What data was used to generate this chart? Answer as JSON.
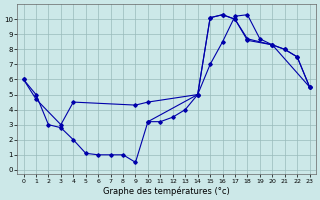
{
  "xlabel": "Graphe des températures (°c)",
  "bg_color": "#cce8e8",
  "line_color": "#0000aa",
  "grid_color": "#99bbbb",
  "xlim": [
    -0.5,
    23.5
  ],
  "ylim": [
    -0.3,
    11.0
  ],
  "xticks": [
    0,
    1,
    2,
    3,
    4,
    5,
    6,
    7,
    8,
    9,
    10,
    11,
    12,
    13,
    14,
    15,
    16,
    17,
    18,
    19,
    20,
    21,
    22,
    23
  ],
  "yticks": [
    0,
    1,
    2,
    3,
    4,
    5,
    6,
    7,
    8,
    9,
    10
  ],
  "curve1": {
    "x": [
      0,
      1,
      2,
      3,
      4,
      5,
      6,
      7,
      8,
      9,
      10,
      11,
      12,
      13,
      14,
      15,
      16,
      17,
      18,
      19,
      20,
      21,
      22,
      23
    ],
    "y": [
      6,
      5,
      3,
      2.8,
      2.0,
      1.1,
      1.0,
      1.0,
      1.0,
      0.5,
      3.2,
      3.2,
      3.5,
      4.0,
      5.0,
      7.0,
      8.5,
      10.2,
      10.3,
      8.7,
      8.3,
      8.0,
      7.5,
      5.5
    ]
  },
  "curve2": {
    "comment": "second curve: goes from (0,6) -> (1,4.7) -> (3,3) -> (4,4.5) -> (9,4.3) -> (10,4.5) -> (14,5) -> (15,10.1) -> (16,10.3) -> (17,10.0) -> (18,8.6) -> (20,8.3) -> (21,8.0) -> (22,7.5) -> (23,5.5)",
    "x": [
      0,
      1,
      3,
      4,
      9,
      10,
      14,
      15,
      16,
      17,
      18,
      20,
      21,
      22,
      23
    ],
    "y": [
      6,
      4.7,
      3.0,
      4.5,
      4.3,
      4.5,
      5.0,
      10.1,
      10.3,
      10.0,
      8.6,
      8.3,
      8.0,
      7.5,
      5.5
    ]
  },
  "curve3": {
    "comment": "third curve: triangle peak region only: (10,3.2)->(14,5)->(15,10.1)->(16,10.3)->(17,10.0)->(18,8.7)->(20,8.3)->(23,5.5)",
    "x": [
      10,
      14,
      15,
      16,
      17,
      18,
      20,
      23
    ],
    "y": [
      3.2,
      5.0,
      10.1,
      10.3,
      10.0,
      8.7,
      8.3,
      5.5
    ]
  }
}
